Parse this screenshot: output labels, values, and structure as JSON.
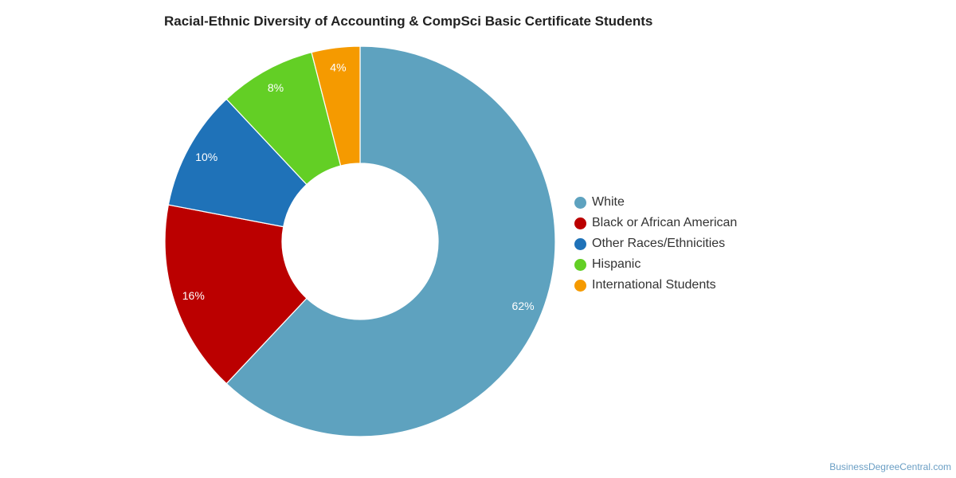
{
  "chart_data": {
    "type": "pie",
    "title": "Racial-Ethnic Diversity of Accounting & CompSci Basic Certificate Students",
    "slices": [
      {
        "label": "White",
        "value": 62,
        "display": "62%",
        "color": "#5ea2bf"
      },
      {
        "label": "Black or African American",
        "value": 16,
        "display": "16%",
        "color": "#bb0000"
      },
      {
        "label": "Other Races/Ethnicities",
        "value": 10,
        "display": "10%",
        "color": "#1f72b8"
      },
      {
        "label": "Hispanic",
        "value": 8,
        "display": "8%",
        "color": "#63cf25"
      },
      {
        "label": "International Students",
        "value": 4,
        "display": "4%",
        "color": "#f59a00"
      }
    ],
    "donut": true,
    "legend_position": "right"
  },
  "footer": {
    "credit": "BusinessDegreeCentral.com"
  }
}
